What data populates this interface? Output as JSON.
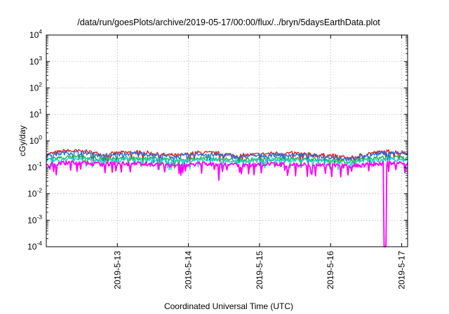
{
  "chart_data": {
    "type": "line",
    "title": "/data/run/goesPlots/archive/2019-05-17/00:00/flux/../bryn/5daysEarthData.plot",
    "xlabel": "Coordinated Universal Time (UTC)",
    "ylabel": "cGy/day",
    "yscale": "log",
    "ylim": [
      0.0001,
      10000
    ],
    "y_ticks": [
      {
        "base": "10",
        "exp": "-4"
      },
      {
        "base": "10",
        "exp": "-3"
      },
      {
        "base": "10",
        "exp": "-2"
      },
      {
        "base": "10",
        "exp": "-1"
      },
      {
        "base": "10",
        "exp": "0"
      },
      {
        "base": "10",
        "exp": "1"
      },
      {
        "base": "10",
        "exp": "2"
      },
      {
        "base": "10",
        "exp": "3"
      },
      {
        "base": "10",
        "exp": "4"
      }
    ],
    "x_range_days": [
      "2019-05-12",
      "2019-05-17"
    ],
    "x_ticks": [
      "2019-5-13",
      "2019-5-14",
      "2019-5-15",
      "2019-5-16",
      "2019-5-17"
    ],
    "grid": true,
    "series": [
      {
        "color": "#e0201c",
        "profile": [
          0.3,
          0.42,
          0.4,
          0.3,
          0.36,
          0.38,
          0.3,
          0.28,
          0.36,
          0.34,
          0.28,
          0.3,
          0.34,
          0.34,
          0.3,
          0.28,
          0.22,
          0.34,
          0.4,
          0.36
        ]
      },
      {
        "color": "#1e6fd9",
        "profile": [
          0.27,
          0.36,
          0.36,
          0.27,
          0.32,
          0.34,
          0.27,
          0.25,
          0.32,
          0.3,
          0.25,
          0.27,
          0.3,
          0.3,
          0.27,
          0.25,
          0.2,
          0.3,
          0.36,
          0.32
        ]
      },
      {
        "color": "#19b04a",
        "profile": [
          0.2,
          0.24,
          0.24,
          0.2,
          0.22,
          0.23,
          0.2,
          0.19,
          0.22,
          0.21,
          0.19,
          0.2,
          0.21,
          0.21,
          0.2,
          0.19,
          0.17,
          0.21,
          0.24,
          0.22
        ]
      },
      {
        "color": "#22d0c8",
        "profile": [
          0.18,
          0.21,
          0.21,
          0.18,
          0.19,
          0.2,
          0.18,
          0.17,
          0.19,
          0.19,
          0.17,
          0.18,
          0.19,
          0.19,
          0.18,
          0.17,
          0.15,
          0.19,
          0.21,
          0.19
        ]
      },
      {
        "color": "#ff00ff",
        "profile": [
          0.13,
          0.15,
          0.15,
          0.13,
          0.14,
          0.14,
          0.13,
          0.12,
          0.14,
          0.13,
          0.12,
          0.13,
          0.13,
          0.13,
          0.12,
          0.12,
          0.11,
          0.13,
          0.15,
          0.14
        ]
      }
    ],
    "features": [
      {
        "series": 4,
        "date": "2019-05-16 18:30",
        "value": 0.0001
      }
    ]
  }
}
